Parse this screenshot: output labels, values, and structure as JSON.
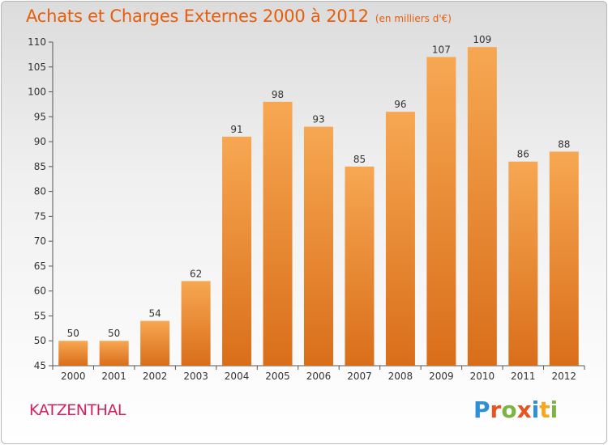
{
  "header": {
    "title": "Achats et Charges Externes 2000 à 2012",
    "subtitle": "(en milliers d'€)"
  },
  "footer": {
    "place": "KATZENTHAL",
    "logo": {
      "text": "Proxiti",
      "letter_colors": [
        "#2f8fd6",
        "#e8531f",
        "#7cb342",
        "#e8531f",
        "#2f8fd6",
        "#f5a623",
        "#7cb342"
      ]
    }
  },
  "colors": {
    "bar_top": "#f7a752",
    "bar_bottom": "#d96e1a",
    "title": "#e65d0c",
    "place": "#d1245c"
  },
  "chart_data": {
    "type": "bar",
    "title": "Achats et Charges Externes 2000 à 2012",
    "subtitle": "(en milliers d'€)",
    "categories": [
      "2000",
      "2001",
      "2002",
      "2003",
      "2004",
      "2005",
      "2006",
      "2007",
      "2008",
      "2009",
      "2010",
      "2011",
      "2012"
    ],
    "values": [
      50,
      50,
      54,
      62,
      91,
      98,
      93,
      85,
      96,
      107,
      109,
      86,
      88
    ],
    "ylim": [
      45,
      110
    ],
    "yticks": [
      45,
      50,
      55,
      60,
      65,
      70,
      75,
      80,
      85,
      90,
      95,
      100,
      105,
      110
    ],
    "grid": false,
    "data_labels": true,
    "xlabel": "",
    "ylabel": ""
  }
}
